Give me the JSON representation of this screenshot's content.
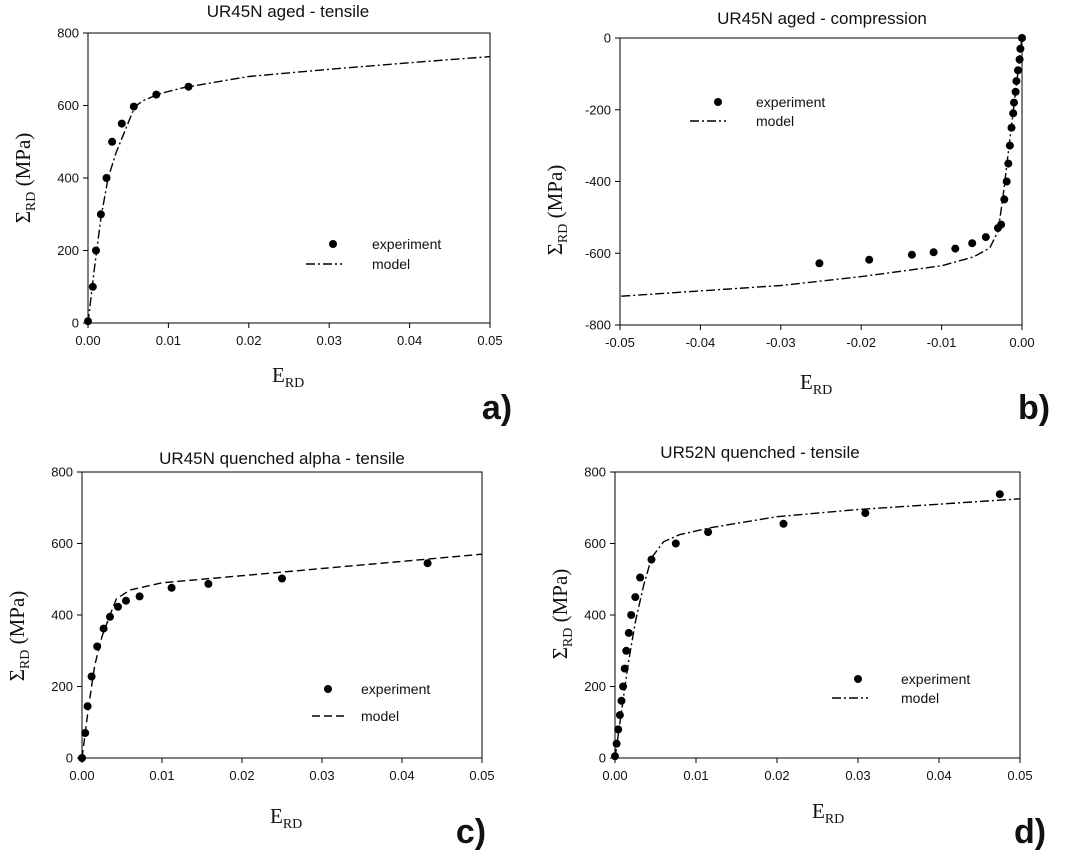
{
  "chart_data": [
    {
      "type": "scatter",
      "panel": "a)",
      "title": "UR45N aged - tensile",
      "xlabel": {
        "main": "E",
        "sub": "RD"
      },
      "ylabel": {
        "main": "Σ",
        "sub": "RD",
        "rest": " (MPa)"
      },
      "xlim": [
        0,
        0.05
      ],
      "ylim": [
        0,
        800
      ],
      "xticks": [
        0,
        0.01,
        0.02,
        0.03,
        0.04,
        0.05
      ],
      "xtick_labels": [
        "0.00",
        "0.01",
        "0.02",
        "0.03",
        "0.04",
        "0.05"
      ],
      "yticks": [
        0,
        200,
        400,
        600,
        800
      ],
      "ytick_labels": [
        "0",
        "200",
        "400",
        "600",
        "800"
      ],
      "legend": {
        "position": "lower-right",
        "items": [
          "experiment",
          "model"
        ]
      },
      "series": [
        {
          "name": "experiment",
          "kind": "points",
          "x": [
            0.0,
            0.0006,
            0.001,
            0.0016,
            0.0023,
            0.003,
            0.0042,
            0.0057,
            0.0085,
            0.0125
          ],
          "y": [
            5,
            100,
            200,
            300,
            400,
            500,
            550,
            597,
            630,
            652
          ]
        },
        {
          "name": "model",
          "kind": "line",
          "dash": "dash-dot",
          "x": [
            0,
            0.0008,
            0.0016,
            0.0025,
            0.0035,
            0.0045,
            0.0055,
            0.006,
            0.007,
            0.009,
            0.012,
            0.02,
            0.03,
            0.04,
            0.05
          ],
          "y": [
            0,
            150,
            290,
            400,
            470,
            525,
            580,
            600,
            615,
            633,
            650,
            680,
            700,
            718,
            735
          ]
        }
      ]
    },
    {
      "type": "scatter",
      "panel": "b)",
      "title": "UR45N aged - compression",
      "xlabel": {
        "main": "E",
        "sub": "RD"
      },
      "ylabel": {
        "main": "Σ",
        "sub": "RD",
        "rest": "  (MPa)"
      },
      "xlim": [
        -0.05,
        0.0
      ],
      "ylim": [
        -800,
        0
      ],
      "xticks": [
        -0.05,
        -0.04,
        -0.03,
        -0.02,
        -0.01,
        0.0
      ],
      "xtick_labels": [
        "-0.05",
        "-0.04",
        "-0.03",
        "-0.02",
        "-0.01",
        "0.00"
      ],
      "yticks": [
        -800,
        -600,
        -400,
        -200,
        0
      ],
      "ytick_labels": [
        "-800",
        "-600",
        "-400",
        "-200",
        "0"
      ],
      "legend": {
        "position": "upper-left",
        "items": [
          "experiment",
          "model"
        ]
      },
      "series": [
        {
          "name": "experiment",
          "kind": "points",
          "x": [
            0.0,
            -0.0002,
            -0.0003,
            -0.0005,
            -0.0007,
            -0.0008,
            -0.001,
            -0.0011,
            -0.0013,
            -0.0015,
            -0.0017,
            -0.0019,
            -0.0022,
            -0.0026,
            -0.003,
            -0.0045,
            -0.0062,
            -0.0083,
            -0.011,
            -0.0137,
            -0.019,
            -0.0252
          ],
          "y": [
            0,
            -30,
            -60,
            -90,
            -120,
            -150,
            -180,
            -210,
            -250,
            -300,
            -350,
            -400,
            -450,
            -520,
            -530,
            -555,
            -572,
            -587,
            -597,
            -604,
            -618,
            -628
          ]
        },
        {
          "name": "model",
          "kind": "line",
          "dash": "dash-dot",
          "x": [
            0,
            -0.0008,
            -0.0016,
            -0.0024,
            -0.003,
            -0.004,
            -0.006,
            -0.01,
            -0.02,
            -0.03,
            -0.04,
            -0.05
          ],
          "y": [
            0,
            -150,
            -300,
            -450,
            -540,
            -585,
            -610,
            -635,
            -665,
            -690,
            -705,
            -720
          ]
        }
      ]
    },
    {
      "type": "scatter",
      "panel": "c)",
      "title": "UR45N quenched alpha - tensile",
      "xlabel": {
        "main": "E",
        "sub": "RD"
      },
      "ylabel": {
        "main": "Σ",
        "sub": "RD",
        "rest": "  (MPa)"
      },
      "xlim": [
        0,
        0.05
      ],
      "ylim": [
        0,
        800
      ],
      "xticks": [
        0,
        0.01,
        0.02,
        0.03,
        0.04,
        0.05
      ],
      "xtick_labels": [
        "0.00",
        "0.01",
        "0.02",
        "0.03",
        "0.04",
        "0.05"
      ],
      "yticks": [
        0,
        200,
        400,
        600,
        800
      ],
      "ytick_labels": [
        "0",
        "200",
        "400",
        "600",
        "800"
      ],
      "legend": {
        "position": "lower-right",
        "items": [
          "experiment",
          "model"
        ]
      },
      "series": [
        {
          "name": "experiment",
          "kind": "points",
          "x": [
            0.0,
            0.0004,
            0.0007,
            0.0012,
            0.0019,
            0.0027,
            0.0035,
            0.0045,
            0.0055,
            0.0072,
            0.0112,
            0.0158,
            0.025,
            0.0432
          ],
          "y": [
            0,
            70,
            145,
            228,
            312,
            362,
            395,
            423,
            440,
            452,
            476,
            487,
            502,
            545
          ]
        },
        {
          "name": "model",
          "kind": "line",
          "dash": "dash",
          "x": [
            0,
            0.0008,
            0.0016,
            0.0025,
            0.0035,
            0.0043,
            0.006,
            0.01,
            0.02,
            0.03,
            0.04,
            0.05
          ],
          "y": [
            0,
            140,
            260,
            340,
            400,
            445,
            470,
            490,
            510,
            530,
            550,
            570
          ]
        }
      ]
    },
    {
      "type": "scatter",
      "panel": "d)",
      "title": "UR52N quenched - tensile",
      "xlabel": {
        "main": "E",
        "sub": "RD"
      },
      "ylabel": {
        "main": "Σ",
        "sub": "RD",
        "rest": " (MPa)"
      },
      "xlim": [
        0,
        0.05
      ],
      "ylim": [
        0,
        800
      ],
      "xticks": [
        0,
        0.01,
        0.02,
        0.03,
        0.04,
        0.05
      ],
      "xtick_labels": [
        "0.00",
        "0.01",
        "0.02",
        "0.03",
        "0.04",
        "0.05"
      ],
      "yticks": [
        0,
        200,
        400,
        600,
        800
      ],
      "ytick_labels": [
        "0",
        "200",
        "400",
        "600",
        "800"
      ],
      "legend": {
        "position": "lower-right",
        "items": [
          "experiment",
          "model"
        ]
      },
      "series": [
        {
          "name": "experiment",
          "kind": "points",
          "x": [
            0.0,
            0.0002,
            0.0004,
            0.0006,
            0.0008,
            0.001,
            0.0012,
            0.0014,
            0.0017,
            0.002,
            0.0025,
            0.0031,
            0.0045,
            0.0075,
            0.0115,
            0.0208,
            0.0309,
            0.0475
          ],
          "y": [
            5,
            40,
            80,
            120,
            160,
            200,
            250,
            300,
            350,
            400,
            450,
            505,
            555,
            600,
            632,
            655,
            685,
            738
          ]
        },
        {
          "name": "model",
          "kind": "line",
          "dash": "dash-dot",
          "x": [
            0,
            0.0008,
            0.0016,
            0.0025,
            0.0035,
            0.0045,
            0.006,
            0.008,
            0.012,
            0.02,
            0.03,
            0.04,
            0.05
          ],
          "y": [
            0,
            130,
            260,
            380,
            480,
            560,
            605,
            625,
            645,
            675,
            695,
            710,
            725
          ]
        }
      ]
    }
  ]
}
